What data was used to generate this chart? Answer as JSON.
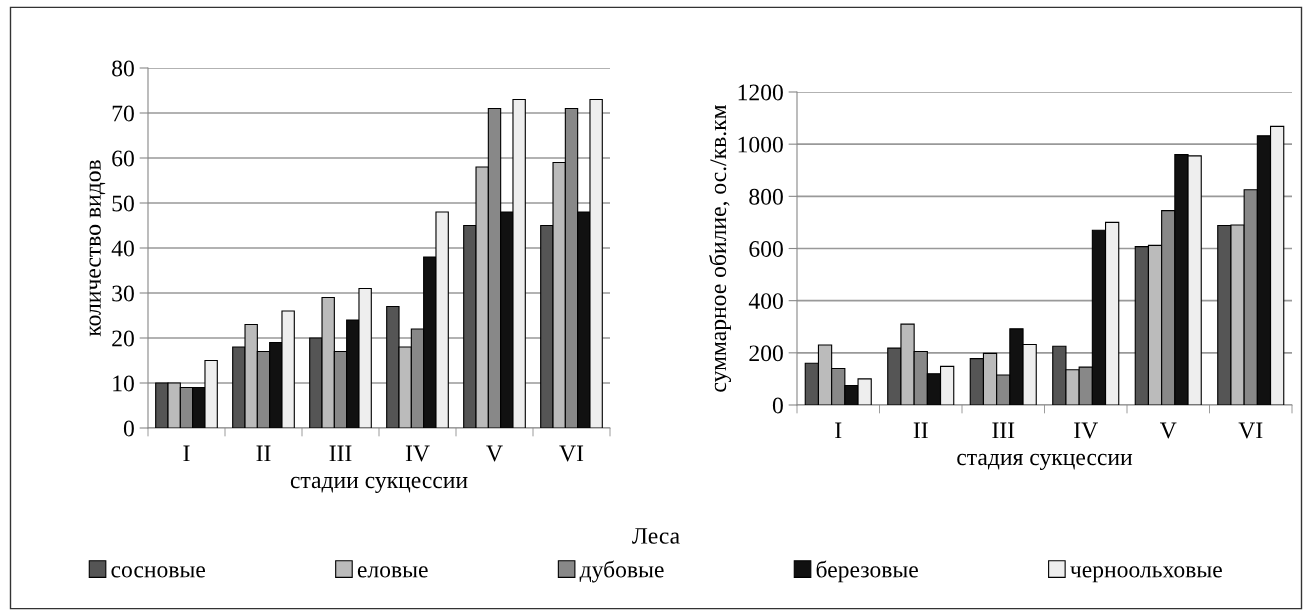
{
  "chart_data": [
    {
      "type": "bar",
      "xlabel": "стадии сукцессии",
      "ylabel": "количество видов",
      "categories": [
        "I",
        "II",
        "III",
        "IV",
        "V",
        "VI"
      ],
      "ylim": [
        0,
        80
      ],
      "yticks": [
        0,
        10,
        20,
        30,
        40,
        50,
        60,
        70,
        80
      ],
      "grid": "y",
      "legend": "bottom",
      "legend_title": "Леса",
      "series": [
        {
          "name": "сосновые",
          "color": "#555555",
          "values": [
            10,
            18,
            20,
            27,
            45,
            45
          ]
        },
        {
          "name": "еловые",
          "color": "#bbbbbb",
          "values": [
            10,
            23,
            29,
            18,
            58,
            59
          ]
        },
        {
          "name": "дубовые",
          "color": "#888888",
          "values": [
            9,
            17,
            17,
            22,
            71,
            71
          ]
        },
        {
          "name": "березовые",
          "color": "#111111",
          "values": [
            9,
            19,
            24,
            38,
            48,
            48
          ]
        },
        {
          "name": "черноольховые",
          "color": "#eeeeee",
          "values": [
            15,
            26,
            31,
            48,
            73,
            73
          ]
        }
      ]
    },
    {
      "type": "bar",
      "xlabel": "стадия сукцессии",
      "ylabel": "суммарное обилие, ос./кв.км",
      "categories": [
        "I",
        "II",
        "III",
        "IV",
        "V",
        "VI"
      ],
      "ylim": [
        0,
        1200
      ],
      "yticks": [
        0,
        200,
        400,
        600,
        800,
        1000,
        1200
      ],
      "grid": "y",
      "series": [
        {
          "color": "#555555",
          "values": [
            160,
            218,
            178,
            225,
            607,
            688
          ]
        },
        {
          "color": "#bbbbbb",
          "values": [
            230,
            310,
            198,
            135,
            612,
            690
          ]
        },
        {
          "color": "#888888",
          "values": [
            140,
            205,
            115,
            145,
            745,
            825
          ]
        },
        {
          "color": "#111111",
          "values": [
            75,
            120,
            292,
            670,
            960,
            1032
          ]
        },
        {
          "color": "#eeeeee",
          "values": [
            100,
            148,
            232,
            700,
            955,
            1068
          ]
        }
      ]
    }
  ]
}
